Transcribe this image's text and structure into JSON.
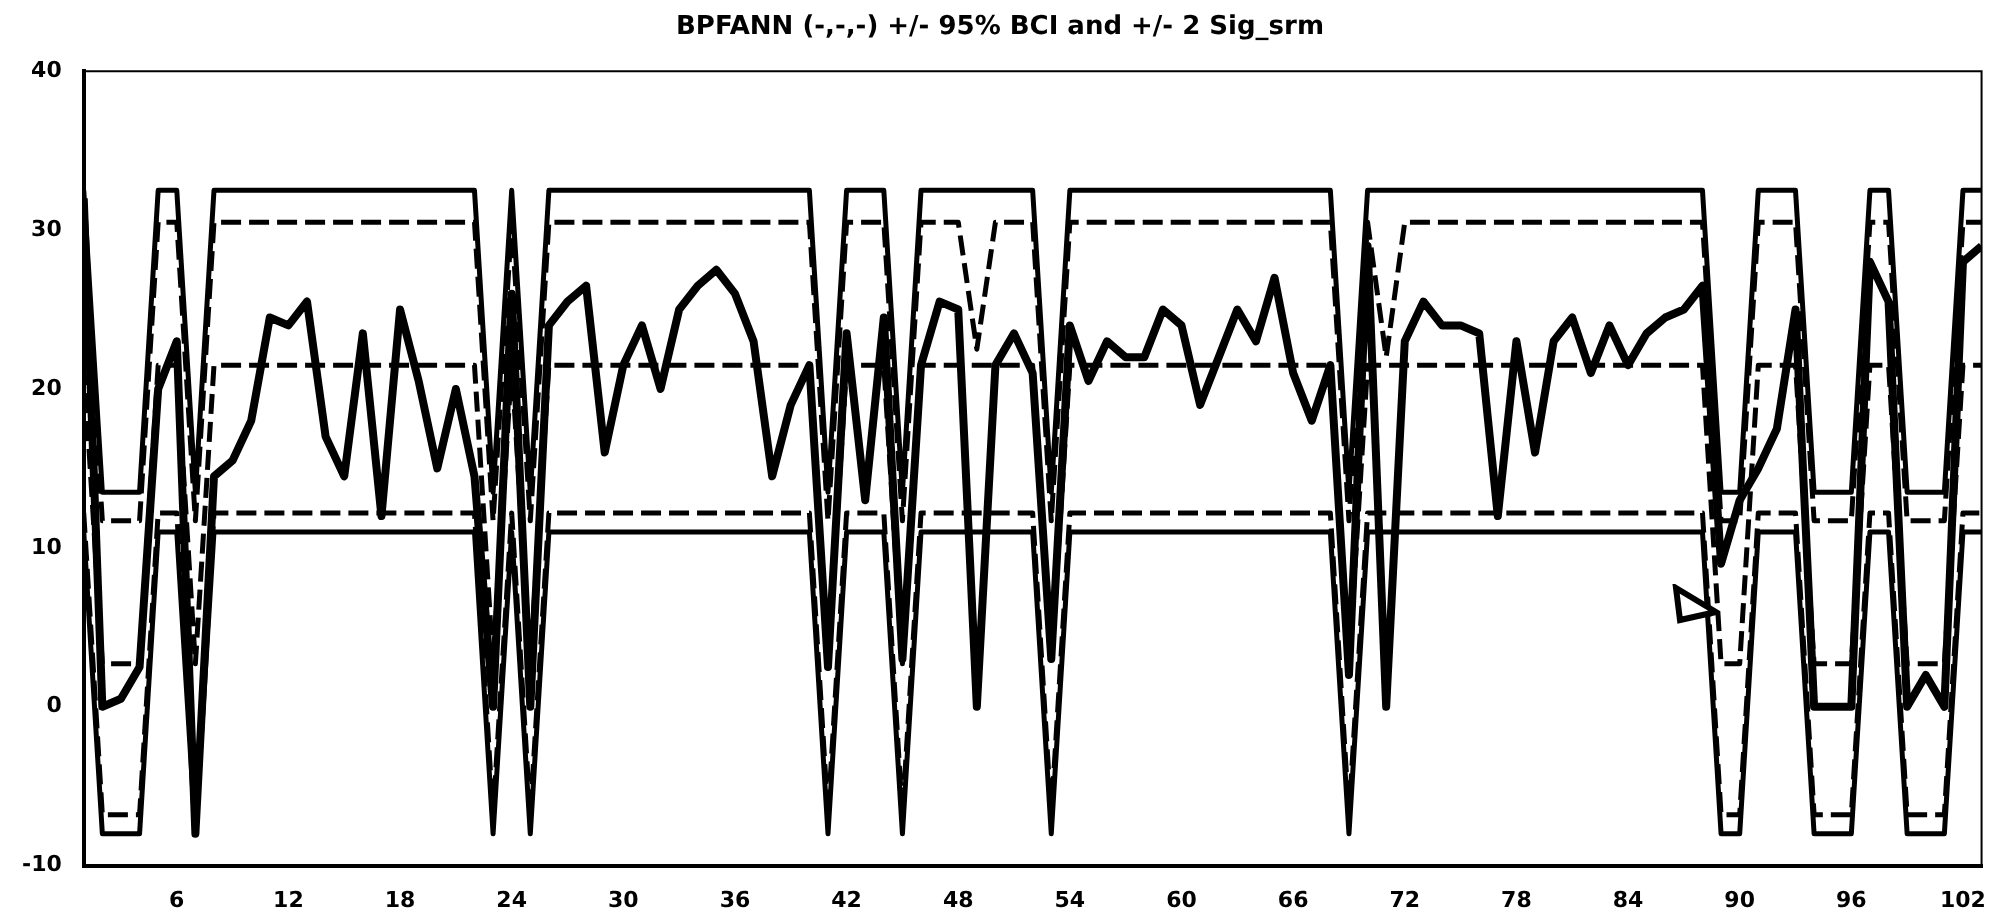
{
  "chart_data": {
    "type": "line",
    "title": "BPFANN (-,-,-) +/- 95% BCI and +/- 2 Sig_srm",
    "x": [
      1,
      2,
      3,
      4,
      5,
      6,
      7,
      8,
      9,
      10,
      11,
      12,
      13,
      14,
      15,
      16,
      17,
      18,
      19,
      20,
      21,
      22,
      23,
      24,
      25,
      26,
      27,
      28,
      29,
      30,
      31,
      32,
      33,
      34,
      35,
      36,
      37,
      38,
      39,
      40,
      41,
      42,
      43,
      44,
      45,
      46,
      47,
      48,
      49,
      50,
      51,
      52,
      53,
      54,
      55,
      56,
      57,
      58,
      59,
      60,
      61,
      62,
      63,
      64,
      65,
      66,
      67,
      68,
      69,
      70,
      71,
      72,
      73,
      74,
      75,
      76,
      77,
      78,
      79,
      80,
      81,
      82,
      83,
      84,
      85,
      86,
      87,
      88,
      89,
      90,
      91,
      92,
      93,
      94,
      95,
      96,
      97,
      98,
      99,
      100,
      101,
      102,
      103
    ],
    "xlim": [
      1,
      103
    ],
    "xticks": [
      6,
      12,
      18,
      24,
      30,
      36,
      42,
      48,
      54,
      60,
      66,
      72,
      78,
      84,
      90,
      96,
      102
    ],
    "ylim": [
      -10,
      40
    ],
    "yticks": [
      -10,
      0,
      10,
      20,
      30,
      40
    ],
    "legend": false,
    "grid": false,
    "marker": "none",
    "series": [
      {
        "color": "#000000",
        "line_style": "solid",
        "values": [
          32,
          0,
          0.5,
          2.5,
          20,
          23,
          -8,
          14.5,
          15.5,
          18,
          24.5,
          24,
          25.5,
          17,
          14.5,
          23.5,
          12,
          25,
          20.5,
          15,
          20,
          14.5,
          0,
          26,
          0,
          24,
          25.5,
          26.5,
          16,
          21.5,
          24,
          20,
          25,
          26.5,
          27.5,
          26,
          23,
          14.5,
          19,
          21.5,
          2.5,
          23.5,
          13,
          24.5,
          3,
          21.5,
          25.5,
          25,
          0,
          21.5,
          23.5,
          21,
          3,
          24,
          20.5,
          23,
          22,
          22,
          25,
          24,
          19,
          22,
          25,
          23,
          27,
          21,
          18,
          21.5,
          2,
          29,
          0,
          23,
          25.5,
          24,
          24,
          23.5,
          12,
          23,
          16,
          23,
          24.5,
          21,
          24,
          21.5,
          23.5,
          24.5,
          25,
          26.5,
          9,
          13,
          15,
          17.5,
          25,
          0,
          0,
          0,
          28,
          25.5,
          0,
          2,
          0,
          28,
          29
        ]
      },
      {
        "color": "#000000",
        "line_style": "solid",
        "values": [
          32.5,
          13.5,
          13.5,
          13.5,
          32.5,
          32.5,
          13.5,
          32.5,
          32.5,
          32.5,
          32.5,
          32.5,
          32.5,
          32.5,
          32.5,
          32.5,
          32.5,
          32.5,
          32.5,
          32.5,
          32.5,
          32.5,
          13.5,
          32.5,
          13.5,
          32.5,
          32.5,
          32.5,
          32.5,
          32.5,
          32.5,
          32.5,
          32.5,
          32.5,
          32.5,
          32.5,
          32.5,
          32.5,
          32.5,
          32.5,
          13.5,
          32.5,
          32.5,
          32.5,
          13.5,
          32.5,
          32.5,
          32.5,
          32.5,
          32.5,
          32.5,
          32.5,
          13.5,
          32.5,
          32.5,
          32.5,
          32.5,
          32.5,
          32.5,
          32.5,
          32.5,
          32.5,
          32.5,
          32.5,
          32.5,
          32.5,
          32.5,
          32.5,
          13.5,
          32.5,
          32.5,
          32.5,
          32.5,
          32.5,
          32.5,
          32.5,
          32.5,
          32.5,
          32.5,
          32.5,
          32.5,
          32.5,
          32.5,
          32.5,
          32.5,
          32.5,
          32.5,
          32.5,
          13.5,
          13.5,
          32.5,
          32.5,
          32.5,
          13.5,
          13.5,
          13.5,
          32.5,
          32.5,
          13.5,
          13.5,
          13.5,
          32.5,
          32.5
        ]
      },
      {
        "color": "#000000",
        "line_style": "dashed",
        "values": [
          30.5,
          11.7,
          11.7,
          11.7,
          30.5,
          30.5,
          11.7,
          30.5,
          30.5,
          30.5,
          30.5,
          30.5,
          30.5,
          30.5,
          30.5,
          30.5,
          30.5,
          30.5,
          30.5,
          30.5,
          30.5,
          30.5,
          11.7,
          30.5,
          11.7,
          30.5,
          30.5,
          30.5,
          30.5,
          30.5,
          30.5,
          30.5,
          30.5,
          30.5,
          30.5,
          30.5,
          30.5,
          30.5,
          30.5,
          30.5,
          11.7,
          30.5,
          30.5,
          30.5,
          11.7,
          30.5,
          30.5,
          30.5,
          22.5,
          30.5,
          30.5,
          30.5,
          11.7,
          30.5,
          30.5,
          30.5,
          30.5,
          30.5,
          30.5,
          30.5,
          30.5,
          30.5,
          30.5,
          30.5,
          30.5,
          30.5,
          30.5,
          30.5,
          11.7,
          30.5,
          22,
          30.5,
          30.5,
          30.5,
          30.5,
          30.5,
          30.5,
          30.5,
          30.5,
          30.5,
          30.5,
          30.5,
          30.5,
          30.5,
          30.5,
          30.5,
          30.5,
          30.5,
          11.7,
          11.7,
          30.5,
          30.5,
          30.5,
          11.7,
          11.7,
          11.7,
          30.5,
          30.5,
          11.7,
          11.7,
          11.7,
          30.5,
          30.5
        ]
      },
      {
        "color": "#000000",
        "line_style": "dashed",
        "values": [
          21.5,
          2.7,
          2.7,
          2.7,
          21.5,
          21.5,
          2.7,
          21.5,
          21.5,
          21.5,
          21.5,
          21.5,
          21.5,
          21.5,
          21.5,
          21.5,
          21.5,
          21.5,
          21.5,
          21.5,
          21.5,
          21.5,
          2.7,
          21.5,
          2.7,
          21.5,
          21.5,
          21.5,
          21.5,
          21.5,
          21.5,
          21.5,
          21.5,
          21.5,
          21.5,
          21.5,
          21.5,
          21.5,
          21.5,
          21.5,
          2.7,
          21.5,
          21.5,
          21.5,
          2.7,
          21.5,
          21.5,
          21.5,
          21.5,
          21.5,
          21.5,
          21.5,
          2.7,
          21.5,
          21.5,
          21.5,
          21.5,
          21.5,
          21.5,
          21.5,
          21.5,
          21.5,
          21.5,
          21.5,
          21.5,
          21.5,
          21.5,
          21.5,
          2.7,
          21.5,
          21.5,
          21.5,
          21.5,
          21.5,
          21.5,
          21.5,
          21.5,
          21.5,
          21.5,
          21.5,
          21.5,
          21.5,
          21.5,
          21.5,
          21.5,
          21.5,
          21.5,
          21.5,
          2.7,
          2.7,
          21.5,
          21.5,
          21.5,
          2.7,
          2.7,
          2.7,
          21.5,
          21.5,
          2.7,
          2.7,
          2.7,
          21.5,
          21.5
        ]
      },
      {
        "color": "#000000",
        "line_style": "dashed",
        "values": [
          12.2,
          -6.8,
          -6.8,
          -6.8,
          12.2,
          12.2,
          -6.8,
          12.2,
          12.2,
          12.2,
          12.2,
          12.2,
          12.2,
          12.2,
          12.2,
          12.2,
          12.2,
          12.2,
          12.2,
          12.2,
          12.2,
          12.2,
          -6.8,
          12.2,
          -6.8,
          12.2,
          12.2,
          12.2,
          12.2,
          12.2,
          12.2,
          12.2,
          12.2,
          12.2,
          12.2,
          12.2,
          12.2,
          12.2,
          12.2,
          12.2,
          -6.8,
          12.2,
          12.2,
          12.2,
          -6.8,
          12.2,
          12.2,
          12.2,
          12.2,
          12.2,
          12.2,
          12.2,
          -6.8,
          12.2,
          12.2,
          12.2,
          12.2,
          12.2,
          12.2,
          12.2,
          12.2,
          12.2,
          12.2,
          12.2,
          12.2,
          12.2,
          12.2,
          12.2,
          -6.8,
          12.2,
          12.2,
          12.2,
          12.2,
          12.2,
          12.2,
          12.2,
          12.2,
          12.2,
          12.2,
          12.2,
          12.2,
          12.2,
          12.2,
          12.2,
          12.2,
          12.2,
          12.2,
          12.2,
          -6.8,
          -6.8,
          12.2,
          12.2,
          12.2,
          -6.8,
          -6.8,
          -6.8,
          12.2,
          12.2,
          -6.8,
          -6.8,
          -6.8,
          12.2,
          12.2
        ]
      },
      {
        "color": "#000000",
        "line_style": "solid",
        "values": [
          11,
          -8,
          -8,
          -8,
          11,
          11,
          -8,
          11,
          11,
          11,
          11,
          11,
          11,
          11,
          11,
          11,
          11,
          11,
          11,
          11,
          11,
          11,
          -8,
          11,
          -8,
          11,
          11,
          11,
          11,
          11,
          11,
          11,
          11,
          11,
          11,
          11,
          11,
          11,
          11,
          11,
          -8,
          11,
          11,
          11,
          -8,
          11,
          11,
          11,
          11,
          11,
          11,
          11,
          -8,
          11,
          11,
          11,
          11,
          11,
          11,
          11,
          11,
          11,
          11,
          11,
          11,
          11,
          11,
          11,
          -8,
          11,
          11,
          11,
          11,
          11,
          11,
          11,
          11,
          11,
          11,
          11,
          11,
          11,
          11,
          11,
          11,
          11,
          11,
          11,
          -8,
          -8,
          11,
          11,
          11,
          -8,
          -8,
          -8,
          11,
          11,
          -8,
          -8,
          -8,
          11,
          11
        ]
      }
    ]
  }
}
